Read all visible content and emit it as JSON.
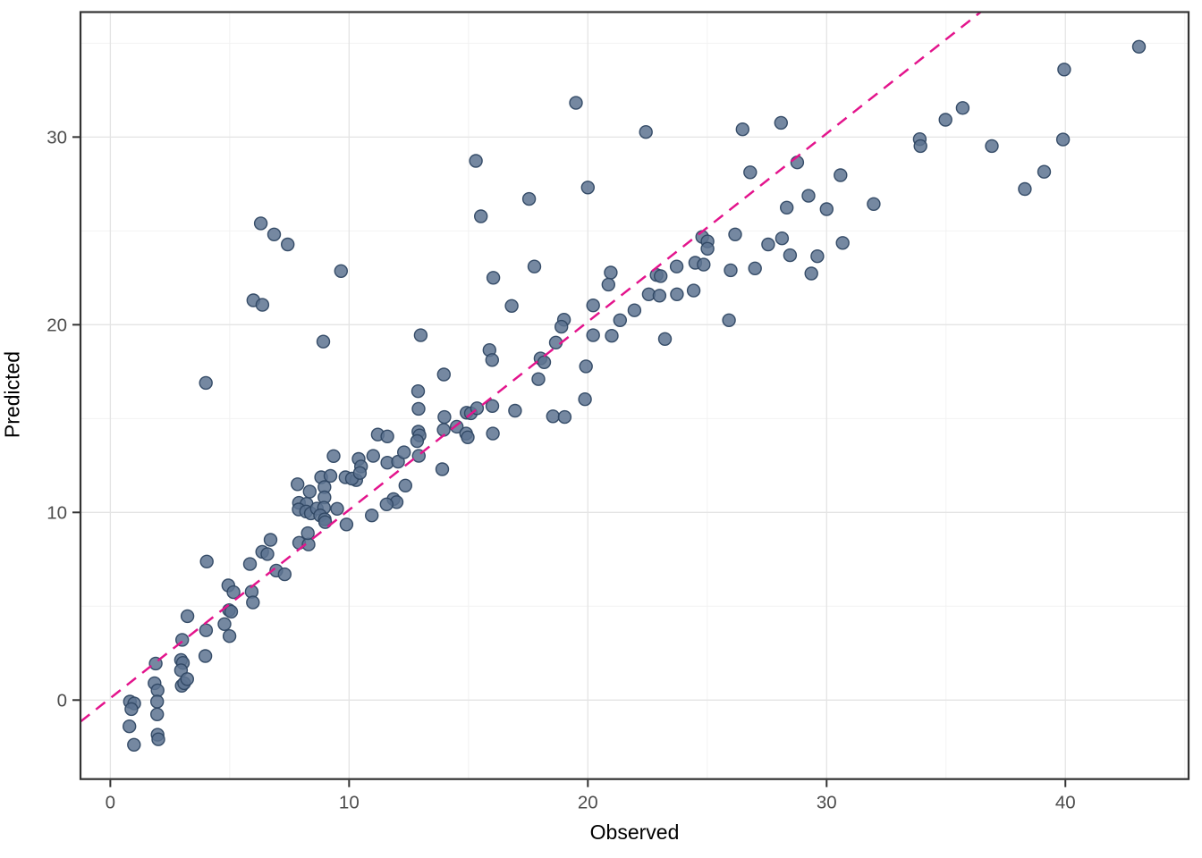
{
  "figure": {
    "kind": "ggplot-style scatter plot",
    "background": "#ffffff"
  },
  "axes": {
    "x": {
      "title": "Observed",
      "tick_labels": [
        "0",
        "10",
        "20",
        "30",
        "40"
      ]
    },
    "y": {
      "title": "Predicted",
      "tick_labels": [
        "0",
        "10",
        "20",
        "30"
      ]
    }
  },
  "style": {
    "panel_background": "#ffffff",
    "panel_border_color": "#333333",
    "grid_major_color": "#e4e4e4",
    "grid_minor_color": "#f2f2f2",
    "tick_color": "#333333",
    "tick_label_color": "#4d4d4d",
    "axis_title_color": "#000000",
    "point_fill": "#5d7390",
    "point_stroke": "#2f4763",
    "point_opacity": 0.85,
    "line_color": "#e3148c"
  },
  "chart_data": {
    "type": "scatter",
    "title": "",
    "xlabel": "Observed",
    "ylabel": "Predicted",
    "xlim": [
      -1.25,
      45.16
    ],
    "ylim": [
      -4.21,
      36.66
    ],
    "x_major_ticks": [
      0,
      10,
      20,
      30,
      40
    ],
    "x_minor_ticks": [
      5,
      15,
      25,
      35,
      45
    ],
    "y_major_ticks": [
      0,
      10,
      20,
      30
    ],
    "y_minor_ticks": [
      5,
      15,
      25,
      35
    ],
    "grid": true,
    "legend": false,
    "reference_line": {
      "style": "dashed",
      "slope": 1.0,
      "intercept": 0.1,
      "x1": -1.25,
      "y1": -1.15,
      "x2": 36.45,
      "y2": 36.66
    },
    "points": [
      [
        0.82,
        -0.08
      ],
      [
        1.0,
        -0.18
      ],
      [
        0.88,
        -0.48
      ],
      [
        0.8,
        -1.4
      ],
      [
        0.99,
        -2.38
      ],
      [
        1.9,
        1.95
      ],
      [
        1.85,
        0.9
      ],
      [
        1.98,
        0.52
      ],
      [
        1.96,
        -0.08
      ],
      [
        1.96,
        -0.76
      ],
      [
        1.98,
        -1.85
      ],
      [
        2.01,
        -2.09
      ],
      [
        3.01,
        3.21
      ],
      [
        2.96,
        2.14
      ],
      [
        3.04,
        1.98
      ],
      [
        2.96,
        1.59
      ],
      [
        2.99,
        0.76
      ],
      [
        3.09,
        0.9
      ],
      [
        3.22,
        1.12
      ],
      [
        3.23,
        4.47
      ],
      [
        4.01,
        3.72
      ],
      [
        3.98,
        2.35
      ],
      [
        4.78,
        4.05
      ],
      [
        4.94,
        6.11
      ],
      [
        5.16,
        5.75
      ],
      [
        4.97,
        4.79
      ],
      [
        5.06,
        4.71
      ],
      [
        4.99,
        3.41
      ],
      [
        5.92,
        5.77
      ],
      [
        5.97,
        5.2
      ],
      [
        4.04,
        7.38
      ],
      [
        5.85,
        7.25
      ],
      [
        6.36,
        7.9
      ],
      [
        6.58,
        7.78
      ],
      [
        6.71,
        8.54
      ],
      [
        6.95,
        6.9
      ],
      [
        7.3,
        6.7
      ],
      [
        7.91,
        8.38
      ],
      [
        8.3,
        8.29
      ],
      [
        8.27,
        8.89
      ],
      [
        4.0,
        16.9
      ],
      [
        5.99,
        21.3
      ],
      [
        6.37,
        21.06
      ],
      [
        6.3,
        25.4
      ],
      [
        6.86,
        24.81
      ],
      [
        7.43,
        24.28
      ],
      [
        7.84,
        11.5
      ],
      [
        8.35,
        11.11
      ],
      [
        8.83,
        11.87
      ],
      [
        9.22,
        11.95
      ],
      [
        8.97,
        11.35
      ],
      [
        8.97,
        10.8
      ],
      [
        7.9,
        10.51
      ],
      [
        8.22,
        10.46
      ],
      [
        7.89,
        10.16
      ],
      [
        8.2,
        10.05
      ],
      [
        8.4,
        9.95
      ],
      [
        8.65,
        10.2
      ],
      [
        8.95,
        10.25
      ],
      [
        9.5,
        10.19
      ],
      [
        8.79,
        9.84
      ],
      [
        8.98,
        9.63
      ],
      [
        9.0,
        9.48
      ],
      [
        9.89,
        9.36
      ],
      [
        10.95,
        9.84
      ],
      [
        9.35,
        13.0
      ],
      [
        8.92,
        19.1
      ],
      [
        9.66,
        22.86
      ],
      [
        9.85,
        11.87
      ],
      [
        10.3,
        11.72
      ],
      [
        10.12,
        11.8
      ],
      [
        10.4,
        12.85
      ],
      [
        10.5,
        12.45
      ],
      [
        10.45,
        12.1
      ],
      [
        11.2,
        14.15
      ],
      [
        11.6,
        14.05
      ],
      [
        11.01,
        13.01
      ],
      [
        11.6,
        12.65
      ],
      [
        12.05,
        12.7
      ],
      [
        12.3,
        13.2
      ],
      [
        12.92,
        13.01
      ],
      [
        12.9,
        14.3
      ],
      [
        12.95,
        14.1
      ],
      [
        12.85,
        13.8
      ],
      [
        12.36,
        11.43
      ],
      [
        11.86,
        10.71
      ],
      [
        11.99,
        10.55
      ],
      [
        11.57,
        10.43
      ],
      [
        13.0,
        19.44
      ],
      [
        12.89,
        16.46
      ],
      [
        12.91,
        15.52
      ],
      [
        13.97,
        17.35
      ],
      [
        13.9,
        12.3
      ],
      [
        13.99,
        15.08
      ],
      [
        14.51,
        14.57
      ],
      [
        13.96,
        14.4
      ],
      [
        14.9,
        14.2
      ],
      [
        14.97,
        14.0
      ],
      [
        14.92,
        15.31
      ],
      [
        15.1,
        15.28
      ],
      [
        15.36,
        15.55
      ],
      [
        16.0,
        15.67
      ],
      [
        16.02,
        14.2
      ],
      [
        15.31,
        28.73
      ],
      [
        15.52,
        25.78
      ],
      [
        16.04,
        22.5
      ],
      [
        15.88,
        18.65
      ],
      [
        15.99,
        18.12
      ],
      [
        16.95,
        15.42
      ],
      [
        16.81,
        21.0
      ],
      [
        17.54,
        26.7
      ],
      [
        17.76,
        23.1
      ],
      [
        17.93,
        17.1
      ],
      [
        18.02,
        18.2
      ],
      [
        18.17,
        18.0
      ],
      [
        18.66,
        19.05
      ],
      [
        18.54,
        15.12
      ],
      [
        19.03,
        15.08
      ],
      [
        19.0,
        20.27
      ],
      [
        18.89,
        19.89
      ],
      [
        19.5,
        31.82
      ],
      [
        19.92,
        17.78
      ],
      [
        19.88,
        16.03
      ],
      [
        20.22,
        21.03
      ],
      [
        20.22,
        19.44
      ],
      [
        21.0,
        19.41
      ],
      [
        20.96,
        22.78
      ],
      [
        20.86,
        22.14
      ],
      [
        21.35,
        20.24
      ],
      [
        21.95,
        20.77
      ],
      [
        20.0,
        27.31
      ],
      [
        22.43,
        30.27
      ],
      [
        22.55,
        21.62
      ],
      [
        22.88,
        22.65
      ],
      [
        23.05,
        22.59
      ],
      [
        23.0,
        21.55
      ],
      [
        23.23,
        19.24
      ],
      [
        23.72,
        23.1
      ],
      [
        23.73,
        21.62
      ],
      [
        24.43,
        21.82
      ],
      [
        24.5,
        23.3
      ],
      [
        24.85,
        23.2
      ],
      [
        24.79,
        24.68
      ],
      [
        25.01,
        24.44
      ],
      [
        25.01,
        24.05
      ],
      [
        25.98,
        22.9
      ],
      [
        25.91,
        20.24
      ],
      [
        26.17,
        24.81
      ],
      [
        26.48,
        30.41
      ],
      [
        26.8,
        28.12
      ],
      [
        27.0,
        23.0
      ],
      [
        27.55,
        24.28
      ],
      [
        28.13,
        24.6
      ],
      [
        28.09,
        30.76
      ],
      [
        28.77,
        28.65
      ],
      [
        28.33,
        26.24
      ],
      [
        28.47,
        23.7
      ],
      [
        29.36,
        22.73
      ],
      [
        29.24,
        26.87
      ],
      [
        30.0,
        26.16
      ],
      [
        29.61,
        23.65
      ],
      [
        30.58,
        27.97
      ],
      [
        30.67,
        24.36
      ],
      [
        31.97,
        26.43
      ],
      [
        33.9,
        29.89
      ],
      [
        33.93,
        29.52
      ],
      [
        34.98,
        30.92
      ],
      [
        35.7,
        31.55
      ],
      [
        36.92,
        29.52
      ],
      [
        38.3,
        27.23
      ],
      [
        39.11,
        28.15
      ],
      [
        39.9,
        29.87
      ],
      [
        39.95,
        33.6
      ],
      [
        43.08,
        34.81
      ]
    ]
  }
}
